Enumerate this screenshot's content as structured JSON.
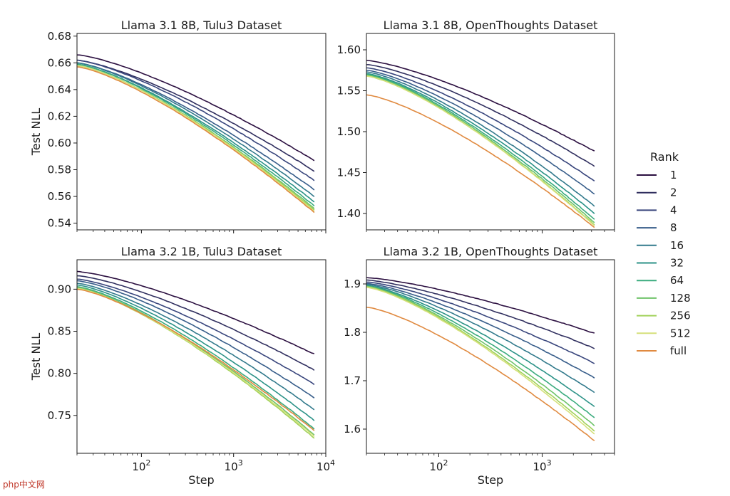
{
  "chart_data": [
    {
      "type": "line",
      "title": "Llama 3.1 8B, Tulu3 Dataset",
      "xlabel": "",
      "ylabel": "Test NLL",
      "x_scale": "log",
      "xlim": [
        20,
        10000
      ],
      "ylim": [
        0.535,
        0.682
      ],
      "yticks": [
        0.54,
        0.56,
        0.58,
        0.6,
        0.62,
        0.64,
        0.66,
        0.68
      ],
      "xticks": [],
      "x_end": 7500,
      "series": [
        {
          "name": "1",
          "start": 0.666,
          "end": 0.587
        },
        {
          "name": "2",
          "start": 0.662,
          "end": 0.579
        },
        {
          "name": "4",
          "start": 0.662,
          "end": 0.572
        },
        {
          "name": "8",
          "start": 0.66,
          "end": 0.565
        },
        {
          "name": "16",
          "start": 0.66,
          "end": 0.56
        },
        {
          "name": "32",
          "start": 0.659,
          "end": 0.556
        },
        {
          "name": "64",
          "start": 0.659,
          "end": 0.553
        },
        {
          "name": "128",
          "start": 0.658,
          "end": 0.551
        },
        {
          "name": "256",
          "start": 0.658,
          "end": 0.55
        },
        {
          "name": "512",
          "start": 0.658,
          "end": 0.549
        },
        {
          "name": "full",
          "start": 0.657,
          "end": 0.548
        }
      ]
    },
    {
      "type": "line",
      "title": "Llama 3.1 8B, OpenThoughts Dataset",
      "xlabel": "",
      "ylabel": "",
      "x_scale": "log",
      "xlim": [
        20,
        5000
      ],
      "ylim": [
        1.38,
        1.62
      ],
      "yticks": [
        1.4,
        1.45,
        1.5,
        1.55,
        1.6
      ],
      "xticks": [],
      "x_end": 3200,
      "series": [
        {
          "name": "1",
          "start": 1.587,
          "end": 1.476
        },
        {
          "name": "2",
          "start": 1.582,
          "end": 1.458
        },
        {
          "name": "4",
          "start": 1.578,
          "end": 1.44
        },
        {
          "name": "8",
          "start": 1.575,
          "end": 1.424
        },
        {
          "name": "16",
          "start": 1.573,
          "end": 1.409
        },
        {
          "name": "32",
          "start": 1.571,
          "end": 1.4
        },
        {
          "name": "64",
          "start": 1.57,
          "end": 1.393
        },
        {
          "name": "128",
          "start": 1.569,
          "end": 1.389
        },
        {
          "name": "256",
          "start": 1.568,
          "end": 1.386
        },
        {
          "name": "512",
          "start": 1.568,
          "end": 1.385
        },
        {
          "name": "full",
          "start": 1.545,
          "end": 1.383
        }
      ]
    },
    {
      "type": "line",
      "title": "Llama 3.2 1B, Tulu3 Dataset",
      "xlabel": "Step",
      "ylabel": "Test NLL",
      "x_scale": "log",
      "xlim": [
        20,
        10000
      ],
      "ylim": [
        0.705,
        0.935
      ],
      "yticks": [
        0.75,
        0.8,
        0.85,
        0.9
      ],
      "xticks": [
        100,
        1000,
        10000
      ],
      "x_end": 7500,
      "series": [
        {
          "name": "1",
          "start": 0.921,
          "end": 0.823
        },
        {
          "name": "2",
          "start": 0.916,
          "end": 0.804
        },
        {
          "name": "4",
          "start": 0.912,
          "end": 0.787
        },
        {
          "name": "8",
          "start": 0.91,
          "end": 0.771
        },
        {
          "name": "16",
          "start": 0.907,
          "end": 0.757
        },
        {
          "name": "32",
          "start": 0.905,
          "end": 0.744
        },
        {
          "name": "64",
          "start": 0.903,
          "end": 0.734
        },
        {
          "name": "128",
          "start": 0.902,
          "end": 0.727
        },
        {
          "name": "256",
          "start": 0.901,
          "end": 0.723
        },
        {
          "name": "512",
          "start": 0.901,
          "end": 0.725
        },
        {
          "name": "full",
          "start": 0.9,
          "end": 0.732
        }
      ]
    },
    {
      "type": "line",
      "title": "Llama 3.2 1B, OpenThoughts Dataset",
      "xlabel": "Step",
      "ylabel": "",
      "x_scale": "log",
      "xlim": [
        20,
        5000
      ],
      "ylim": [
        1.55,
        1.95
      ],
      "yticks": [
        1.6,
        1.7,
        1.8,
        1.9
      ],
      "xticks": [
        100,
        1000
      ],
      "x_end": 3200,
      "series": [
        {
          "name": "1",
          "start": 1.913,
          "end": 1.798
        },
        {
          "name": "2",
          "start": 1.908,
          "end": 1.767
        },
        {
          "name": "4",
          "start": 1.904,
          "end": 1.736
        },
        {
          "name": "8",
          "start": 1.901,
          "end": 1.706
        },
        {
          "name": "16",
          "start": 1.899,
          "end": 1.676
        },
        {
          "name": "32",
          "start": 1.897,
          "end": 1.647
        },
        {
          "name": "64",
          "start": 1.896,
          "end": 1.624
        },
        {
          "name": "128",
          "start": 1.895,
          "end": 1.607
        },
        {
          "name": "256",
          "start": 1.894,
          "end": 1.596
        },
        {
          "name": "512",
          "start": 1.893,
          "end": 1.59
        },
        {
          "name": "full",
          "start": 1.852,
          "end": 1.576
        }
      ]
    }
  ],
  "legend": {
    "title": "Rank",
    "placement": "right",
    "entries": [
      {
        "label": "1",
        "color": "#2b0f40"
      },
      {
        "label": "2",
        "color": "#302f5f"
      },
      {
        "label": "4",
        "color": "#38457c"
      },
      {
        "label": "8",
        "color": "#375d8a"
      },
      {
        "label": "16",
        "color": "#327a8c"
      },
      {
        "label": "32",
        "color": "#2b9287"
      },
      {
        "label": "64",
        "color": "#3aab7e"
      },
      {
        "label": "128",
        "color": "#6fc36a"
      },
      {
        "label": "256",
        "color": "#a2d25a"
      },
      {
        "label": "512",
        "color": "#d5e07a"
      },
      {
        "label": "full",
        "color": "#e08a40"
      }
    ]
  },
  "watermark": "php中文网"
}
